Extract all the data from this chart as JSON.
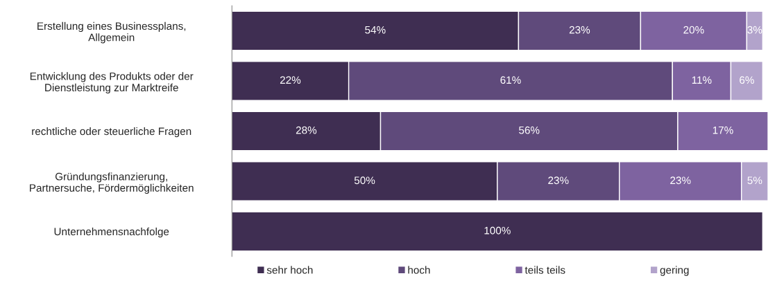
{
  "chart_data": {
    "type": "bar",
    "orientation": "horizontal",
    "stacked": true,
    "legend": "bottom",
    "categories": [
      "Erstellung eines Businessplans,\nAllgemein",
      "Entwicklung des Produkts oder der\nDienstleistung zur Marktreife",
      "rechtliche oder steuerliche Fragen",
      "Gründungsfinanzierung,\nPartnersuche, Fördermöglichkeiten",
      "Unternehmensnachfolge"
    ],
    "series": [
      {
        "name": "sehr hoch",
        "color": "#3f2e52",
        "values": [
          54,
          22,
          28,
          50,
          100
        ],
        "value_labels": [
          "54%",
          "22%",
          "28%",
          "50%",
          "100%"
        ]
      },
      {
        "name": "hoch",
        "color": "#5f4a7b",
        "values": [
          23,
          61,
          56,
          23,
          null
        ],
        "value_labels": [
          "23%",
          "61%",
          "56%",
          "23%",
          null
        ]
      },
      {
        "name": "teils teils",
        "color": "#7e63a0",
        "values": [
          20,
          11,
          17,
          23,
          null
        ],
        "value_labels": [
          "20%",
          "11%",
          "17%",
          "23%",
          null
        ]
      },
      {
        "name": "gering",
        "color": "#b2a3cb",
        "values": [
          3,
          6,
          null,
          5,
          null
        ],
        "value_labels": [
          "3%",
          "6%",
          null,
          "5%",
          null
        ]
      }
    ]
  }
}
